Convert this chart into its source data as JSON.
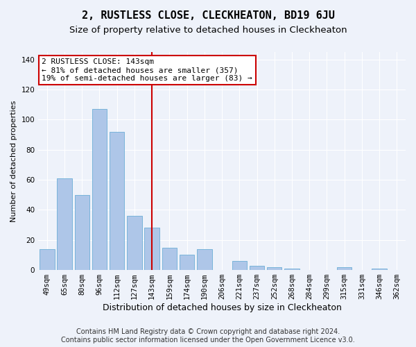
{
  "title": "2, RUSTLESS CLOSE, CLECKHEATON, BD19 6JU",
  "subtitle": "Size of property relative to detached houses in Cleckheaton",
  "xlabel": "Distribution of detached houses by size in Cleckheaton",
  "ylabel": "Number of detached properties",
  "categories": [
    "49sqm",
    "65sqm",
    "80sqm",
    "96sqm",
    "112sqm",
    "127sqm",
    "143sqm",
    "159sqm",
    "174sqm",
    "190sqm",
    "206sqm",
    "221sqm",
    "237sqm",
    "252sqm",
    "268sqm",
    "284sqm",
    "299sqm",
    "315sqm",
    "331sqm",
    "346sqm",
    "362sqm"
  ],
  "values": [
    14,
    61,
    50,
    107,
    92,
    36,
    28,
    15,
    10,
    14,
    0,
    6,
    3,
    2,
    1,
    0,
    0,
    2,
    0,
    1,
    0
  ],
  "bar_color": "#aec6e8",
  "bar_edge_color": "#6baed6",
  "highlight_line_color": "#cc0000",
  "highlight_line_index": 6,
  "ylim": [
    0,
    145
  ],
  "yticks": [
    0,
    20,
    40,
    60,
    80,
    100,
    120,
    140
  ],
  "annotation_text": "2 RUSTLESS CLOSE: 143sqm\n← 81% of detached houses are smaller (357)\n19% of semi-detached houses are larger (83) →",
  "annotation_box_facecolor": "#ffffff",
  "annotation_box_edgecolor": "#cc0000",
  "bg_color": "#eef2fa",
  "grid_color": "#ffffff",
  "footer1": "Contains HM Land Registry data © Crown copyright and database right 2024.",
  "footer2": "Contains public sector information licensed under the Open Government Licence v3.0.",
  "title_fontsize": 11,
  "subtitle_fontsize": 9.5,
  "xlabel_fontsize": 9,
  "ylabel_fontsize": 8,
  "tick_fontsize": 7.5,
  "annotation_fontsize": 8,
  "footer_fontsize": 7
}
